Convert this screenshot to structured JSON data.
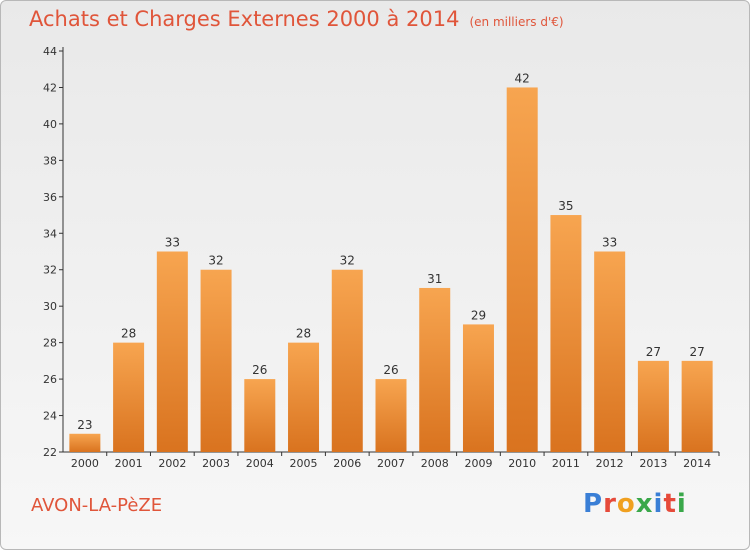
{
  "title": "Achats et Charges Externes 2000 à 2014",
  "unit_note": "(en milliers d'€)",
  "commune": "AVON-LA-PèZE",
  "logo_text": "Proxiti",
  "colors": {
    "bar_light": "#f7a550",
    "bar_dark": "#d9731f",
    "title": "#e0553a",
    "axis": "#333333"
  },
  "chart_data": {
    "type": "bar",
    "categories": [
      "2000",
      "2001",
      "2002",
      "2003",
      "2004",
      "2005",
      "2006",
      "2007",
      "2008",
      "2009",
      "2010",
      "2011",
      "2012",
      "2013",
      "2014"
    ],
    "values": [
      23,
      28,
      33,
      32,
      26,
      28,
      32,
      26,
      31,
      29,
      42,
      35,
      33,
      27,
      27
    ],
    "ylim": [
      22,
      44
    ],
    "yticks": [
      22,
      24,
      26,
      28,
      30,
      32,
      34,
      36,
      38,
      40,
      42,
      44
    ],
    "grid": false,
    "data_labels": true
  }
}
